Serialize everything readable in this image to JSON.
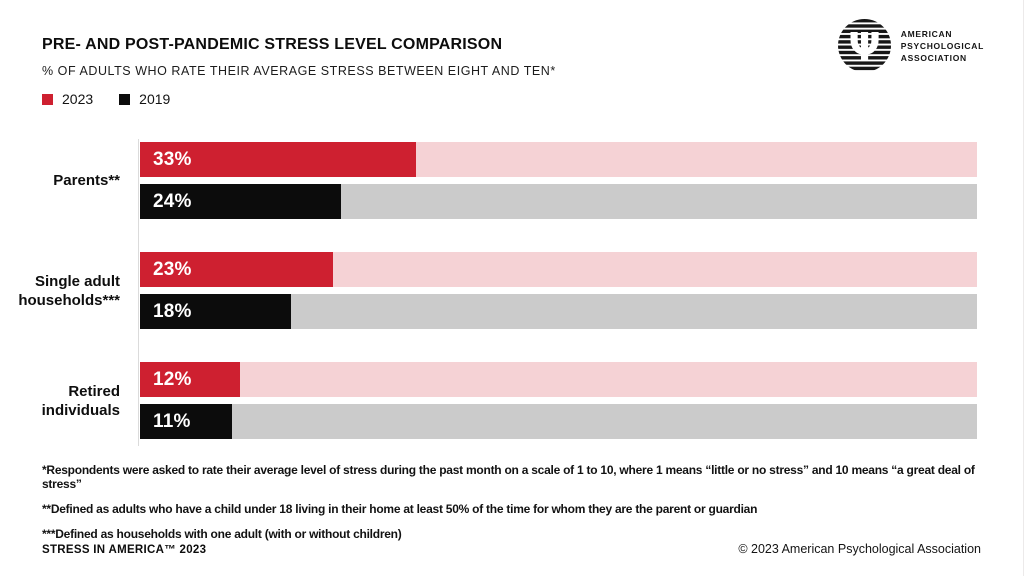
{
  "header": {
    "title": "PRE- AND POST-PANDEMIC STRESS LEVEL COMPARISON",
    "subtitle": "% OF ADULTS WHO RATE THEIR AVERAGE STRESS BETWEEN EIGHT AND TEN*",
    "logo": {
      "icon": "apa-psi-logo",
      "lines": [
        "AMERICAN",
        "PSYCHOLOGICAL",
        "ASSOCIATION"
      ]
    }
  },
  "legend": [
    {
      "label": "2023",
      "color": "#ce2030"
    },
    {
      "label": "2019",
      "color": "#0c0c0c"
    }
  ],
  "chart_data": {
    "type": "bar",
    "orientation": "horizontal",
    "title": "PRE- AND POST-PANDEMIC STRESS LEVEL COMPARISON",
    "subtitle": "% OF ADULTS WHO RATE THEIR AVERAGE STRESS BETWEEN EIGHT AND TEN*",
    "categories": [
      "Parents**",
      "Single adult\nhouseholds***",
      "Retired\nindividuals"
    ],
    "series": [
      {
        "name": "2023",
        "color": "#ce2030",
        "track_color": "#f5d2d5",
        "values": [
          33,
          23,
          12
        ]
      },
      {
        "name": "2019",
        "color": "#0c0c0c",
        "track_color": "#cbcbcb",
        "values": [
          24,
          18,
          11
        ]
      }
    ],
    "value_suffix": "%",
    "xlim": [
      0,
      100
    ],
    "grid": false,
    "legend_position": "top-left"
  },
  "footnotes": [
    "*Respondents were asked to rate their average level of stress during the past month on a scale of 1 to 10, where 1 means “little or no stress” and 10 means “a great deal of stress”",
    "**Defined as adults who have a child under 18 living in their home at least 50% of the time for whom they are the parent or guardian",
    "***Defined as households with one adult (with or without children)"
  ],
  "footer": {
    "left": "STRESS IN AMERICA™ 2023",
    "right": "© 2023 American Psychological Association"
  }
}
